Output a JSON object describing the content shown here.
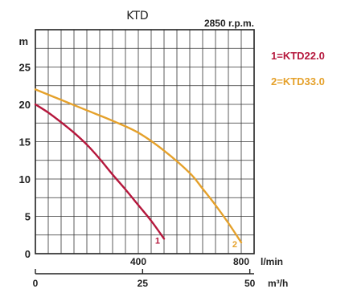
{
  "chart_data": {
    "type": "line",
    "title": "KTD",
    "subtitle": "2850 r.p.m.",
    "ylabel": "m",
    "xlabel": "l/min",
    "x2label": "m³/h",
    "ylim": [
      0,
      30
    ],
    "xlim": [
      0,
      850
    ],
    "x2lim": [
      0,
      51
    ],
    "grid": true,
    "y_ticks": [
      "0",
      "5",
      "10",
      "15",
      "20",
      "25"
    ],
    "x_ticks": [
      "400",
      "800"
    ],
    "x2_ticks": [
      "0",
      "25",
      "50"
    ],
    "series": [
      {
        "name": "1=KTD22.0",
        "marker": "1",
        "color": "#b5173c",
        "x": [
          0,
          50,
          100,
          150,
          200,
          250,
          300,
          350,
          400,
          450,
          500
        ],
        "y": [
          20,
          18.9,
          17.6,
          16.2,
          14.6,
          12.7,
          10.6,
          8.6,
          6.5,
          4.4,
          2
        ]
      },
      {
        "name": "2=KTD33.0",
        "marker": "2",
        "color": "#e5a12b",
        "x": [
          0,
          100,
          200,
          300,
          400,
          500,
          600,
          650,
          700,
          750,
          800
        ],
        "y": [
          22,
          20.6,
          19.2,
          17.8,
          16.2,
          13.8,
          10.8,
          8.7,
          6.5,
          4.1,
          1.5
        ]
      }
    ]
  }
}
